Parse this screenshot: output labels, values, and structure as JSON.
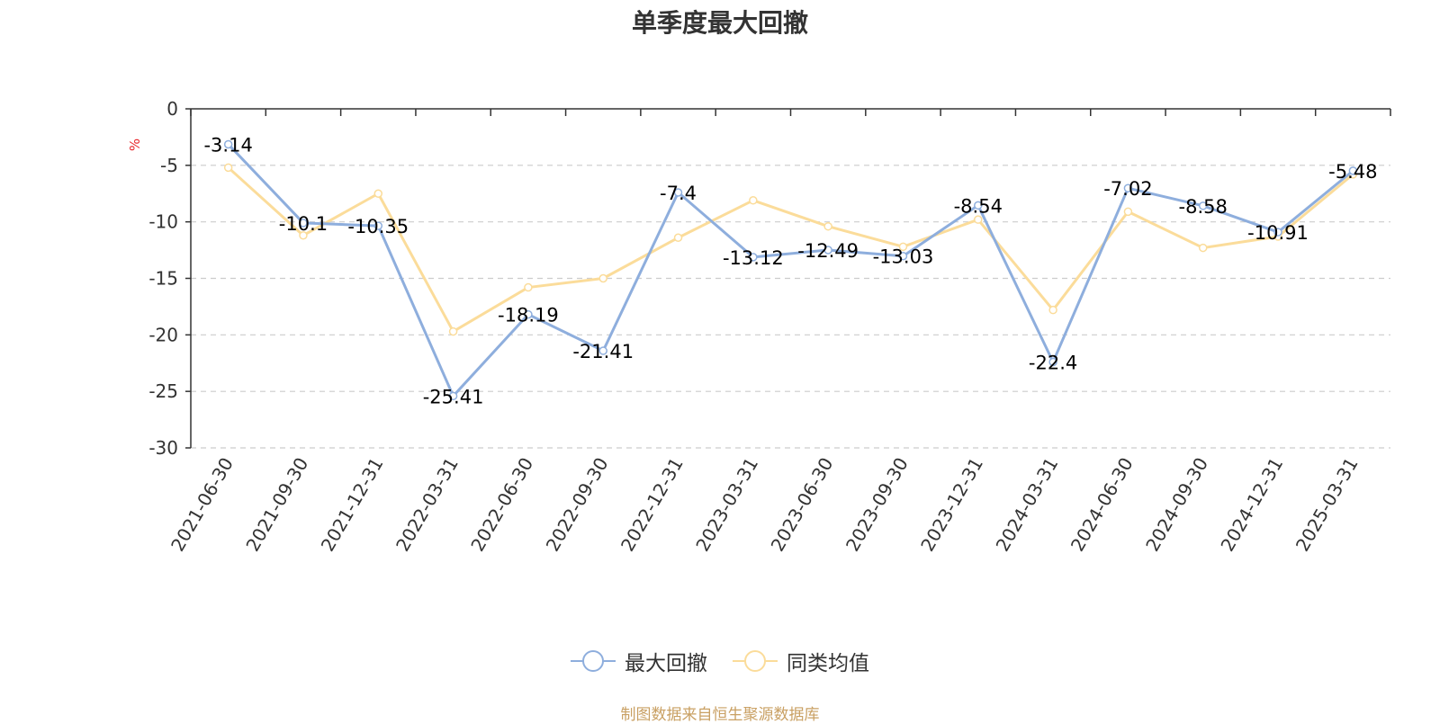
{
  "chart_data": {
    "type": "line",
    "title": "单季度最大回撤",
    "unit": "%",
    "categories": [
      "2021-06-30",
      "2021-09-30",
      "2021-12-31",
      "2022-03-31",
      "2022-06-30",
      "2022-09-30",
      "2022-12-31",
      "2023-03-31",
      "2023-06-30",
      "2023-09-30",
      "2023-12-31",
      "2024-03-31",
      "2024-06-30",
      "2024-09-30",
      "2024-12-31",
      "2025-03-31"
    ],
    "series": [
      {
        "name": "最大回撤",
        "color": "#8eaedd",
        "values": [
          -3.14,
          -10.1,
          -10.35,
          -25.41,
          -18.19,
          -21.41,
          -7.4,
          -13.12,
          -12.49,
          -13.03,
          -8.54,
          -22.4,
          -7.02,
          -8.58,
          -10.91,
          -5.48
        ]
      },
      {
        "name": "同类均值",
        "color": "#fbdc9a",
        "values": [
          -5.2,
          -11.2,
          -7.5,
          -19.7,
          -15.8,
          -15.0,
          -11.4,
          -8.1,
          -10.4,
          -12.2,
          -9.8,
          -17.8,
          -9.1,
          -12.3,
          -11.3,
          -5.8
        ]
      }
    ],
    "yticks": [
      0,
      -5,
      -10,
      -15,
      -20,
      -25,
      -30
    ],
    "ylim": [
      -30,
      0
    ],
    "grid": true,
    "legend_position": "bottom"
  },
  "source_text": "制图数据来自恒生聚源数据库"
}
